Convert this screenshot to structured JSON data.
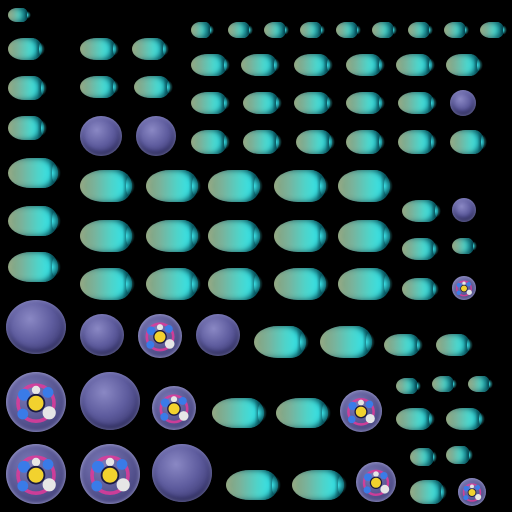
{
  "sheet": {
    "title": "",
    "background": "#000000",
    "palette": {
      "blob_olive": "#8aa07a",
      "blob_cyan": "#38e0e2",
      "blob_dark": "#0b5a66",
      "orb_light": "#8a88c4",
      "orb_dark": "#2a2856",
      "nucleus_yellow": "#f2d22e",
      "electron_blue": "#3a7be8",
      "electron_pink": "#e03a9a",
      "electron_white": "#e6e6e6"
    },
    "sprite_kinds": [
      "cyan-blob",
      "purple-orb",
      "atom-orb"
    ],
    "sprite_count": 120
  }
}
